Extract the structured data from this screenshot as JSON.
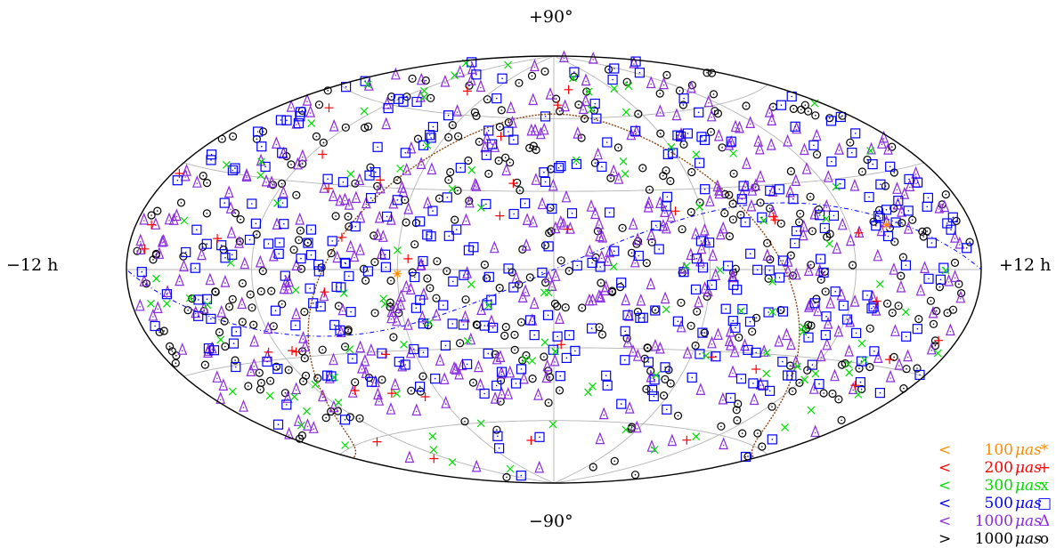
{
  "chart_data": {
    "type": "scatter",
    "projection": "aitoff-hammer all-sky",
    "labels": {
      "top": "+90°",
      "bottom": "−90°",
      "left": "−12 h",
      "right": "+12 h"
    },
    "grid": true,
    "grid_lat_deg": [
      -60,
      -30,
      0,
      30,
      60
    ],
    "grid_lon_hours": [
      -8,
      -4,
      0,
      4,
      8
    ],
    "legend_position": "bottom-right",
    "series": [
      {
        "name": "< 100 μas",
        "compare": "<",
        "value": "100",
        "unit": "μas",
        "symbol": "*",
        "color": "#ff8c00",
        "count": 2
      },
      {
        "name": "< 200 μas",
        "compare": "<",
        "value": "200",
        "unit": "μas",
        "symbol": "+",
        "color": "#ff0000",
        "count": 40
      },
      {
        "name": "< 300 μas",
        "compare": "<",
        "value": "300",
        "unit": "μas",
        "symbol": "x",
        "color": "#00dd00",
        "count": 110
      },
      {
        "name": "< 500 μas",
        "compare": "<",
        "value": "500",
        "unit": "μas",
        "symbol": "□",
        "color": "#0000ff",
        "count": 330
      },
      {
        "name": "< 1000 μas",
        "compare": "<",
        "value": "1000",
        "unit": "μas",
        "symbol": "Δ",
        "color": "#8a2be2",
        "count": 420
      },
      {
        "name": "> 1000 μas",
        "compare": ">",
        "value": "1000",
        "unit": "μas",
        "symbol": "o",
        "color": "#000000",
        "count": 400
      }
    ],
    "curves": [
      {
        "name": "galactic-plane",
        "color": "#8b4513"
      },
      {
        "name": "ecliptic",
        "color": "#0000ff"
      }
    ]
  }
}
